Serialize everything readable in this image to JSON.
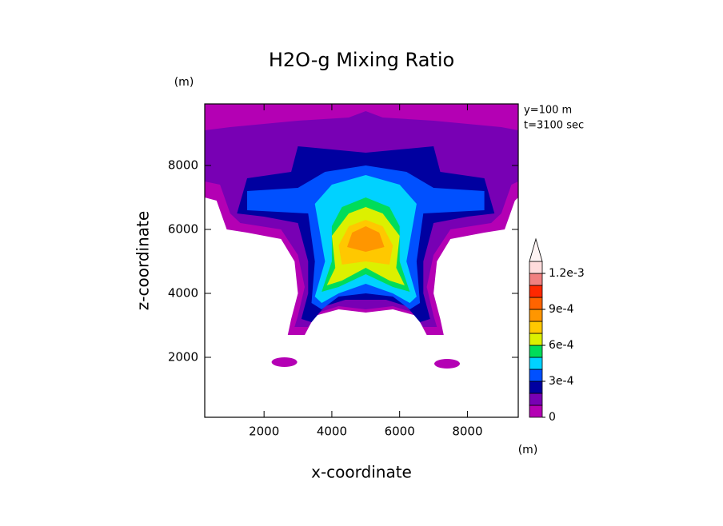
{
  "chart_data": {
    "type": "contour",
    "title": "H2O-g Mixing Ratio",
    "x_label": "x-coordinate",
    "y_label": "z-coordinate",
    "x_unit": "(m)",
    "y_unit": "(m)",
    "annotations": [
      "y=100 m",
      "t=3100 sec"
    ],
    "xlim": [
      250,
      9500
    ],
    "ylim": [
      125,
      9925
    ],
    "xticks": [
      2000,
      4000,
      6000,
      8000
    ],
    "yticks": [
      2000,
      4000,
      6000,
      8000
    ],
    "colorbar": {
      "levels": [
        0,
        0.0001,
        0.0002,
        0.0003,
        0.0004,
        0.0005,
        0.0006,
        0.0007,
        0.0008,
        0.0009,
        0.001,
        0.0011,
        0.0012,
        0.0013
      ],
      "colors": [
        "#b400b4",
        "#7800b4",
        "#0000a0",
        "#0050ff",
        "#00d2ff",
        "#00dc5a",
        "#dcf000",
        "#ffc800",
        "#ff9600",
        "#ff6400",
        "#ff2800",
        "#f08080",
        "#ffdcdc",
        "#fff4f4"
      ],
      "ticks": [
        0,
        {
          "value": 0.0003,
          "label": "3e-4"
        },
        {
          "value": 0.0006,
          "label": "6e-4"
        },
        {
          "value": 0.0009,
          "label": "9e-4"
        },
        {
          "value": 0.0012,
          "label": "1.2e-3"
        }
      ]
    }
  }
}
